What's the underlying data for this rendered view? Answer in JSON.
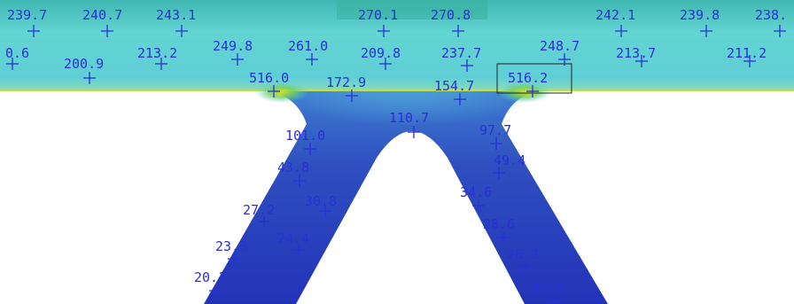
{
  "probes": [
    "239.7",
    "240.7",
    "243.1",
    "270.1",
    "270.8",
    "242.1",
    "239.8",
    "238.",
    "0.6",
    "200.9",
    "213.2",
    "249.8",
    "261.0",
    "209.8",
    "237.7",
    "248.7",
    "213.7",
    "211.2",
    "516.0",
    "172.9",
    "154.7",
    "516.2",
    "110.7",
    "101.0",
    "97.7",
    "43.8",
    "49.4",
    "30.8",
    "34.6",
    "27.2",
    "28.6",
    "24.4",
    "23.3",
    "26.2",
    "20.1",
    "22.9"
  ]
}
